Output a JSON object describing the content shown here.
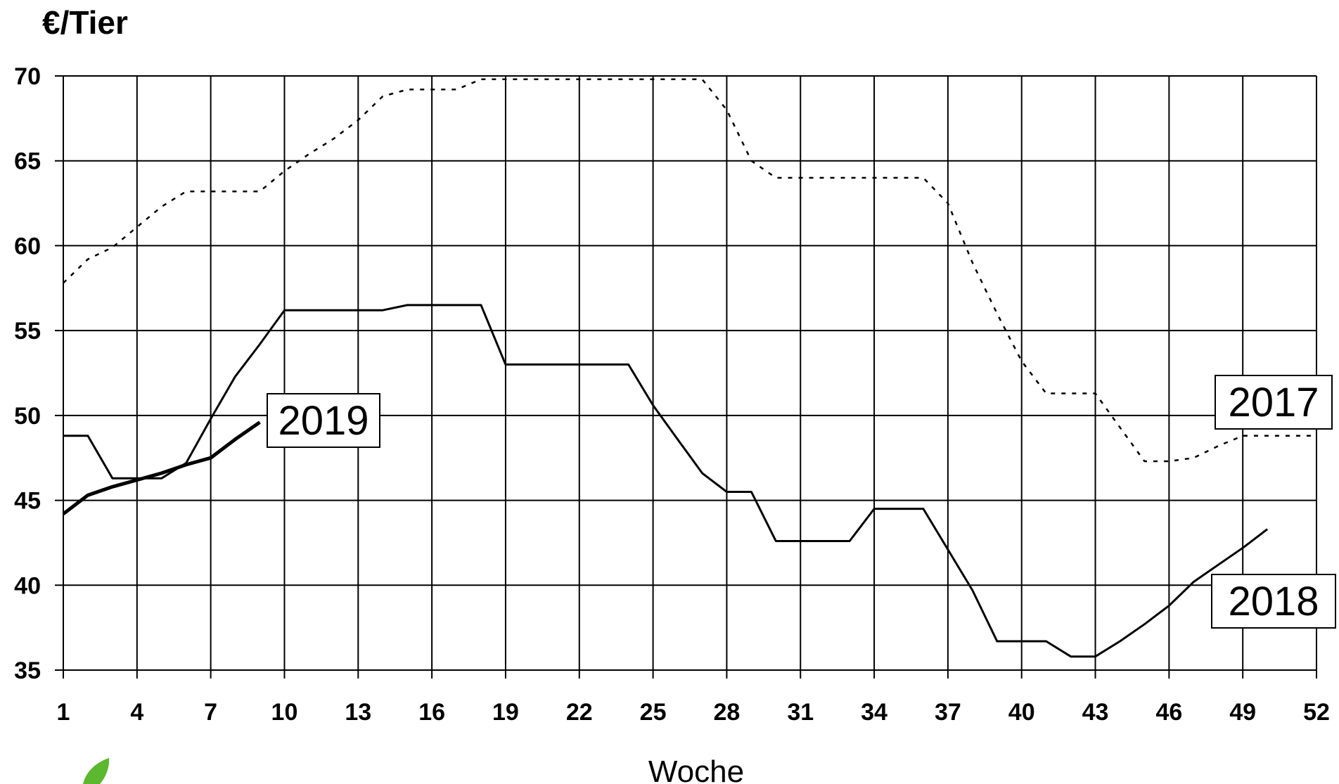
{
  "chart_data": {
    "type": "line",
    "ylabel": "€/Tier",
    "xlabel": "Woche",
    "ylim": [
      35,
      70
    ],
    "xlim": [
      1,
      52
    ],
    "xticks": [
      "1",
      "4",
      "7",
      "10",
      "13",
      "16",
      "19",
      "22",
      "25",
      "28",
      "31",
      "34",
      "37",
      "40",
      "43",
      "46",
      "49",
      "52"
    ],
    "yticks": [
      "35",
      "40",
      "45",
      "50",
      "55",
      "60",
      "65",
      "70"
    ],
    "grid": true,
    "series": [
      {
        "name": "2017",
        "style": "dotted",
        "color": "#000000",
        "x": [
          1,
          2,
          3,
          4,
          5,
          6,
          7,
          8,
          9,
          10,
          11,
          12,
          13,
          14,
          15,
          16,
          17,
          18,
          19,
          20,
          21,
          22,
          23,
          24,
          25,
          26,
          27,
          28,
          29,
          30,
          31,
          32,
          33,
          34,
          35,
          36,
          37,
          38,
          39,
          40,
          41,
          42,
          43,
          44,
          45,
          46,
          47,
          48,
          49,
          50,
          51,
          52
        ],
        "values": [
          57.8,
          59.2,
          59.9,
          61.1,
          62.3,
          63.2,
          63.2,
          63.2,
          63.2,
          64.4,
          65.4,
          66.3,
          67.4,
          68.8,
          69.2,
          69.2,
          69.2,
          69.8,
          69.8,
          69.8,
          69.8,
          69.8,
          69.8,
          69.8,
          69.8,
          69.8,
          69.8,
          68.0,
          65.0,
          64.0,
          64.0,
          64.0,
          64.0,
          64.0,
          64.0,
          64.0,
          62.5,
          59.0,
          56.0,
          53.2,
          51.3,
          51.3,
          51.3,
          49.3,
          47.3,
          47.3,
          47.5,
          48.2,
          48.8,
          48.8,
          48.8,
          48.8
        ]
      },
      {
        "name": "2018",
        "style": "solid",
        "color": "#000000",
        "x": [
          1,
          2,
          3,
          4,
          5,
          6,
          7,
          8,
          9,
          10,
          11,
          12,
          13,
          14,
          15,
          16,
          17,
          18,
          19,
          20,
          21,
          22,
          23,
          24,
          25,
          26,
          27,
          28,
          29,
          30,
          31,
          32,
          33,
          34,
          35,
          36,
          37,
          38,
          39,
          40,
          41,
          42,
          43,
          44,
          45,
          46,
          47,
          48,
          49,
          50
        ],
        "values": [
          48.8,
          48.8,
          46.3,
          46.3,
          46.3,
          47.2,
          49.8,
          52.3,
          54.2,
          56.2,
          56.2,
          56.2,
          56.2,
          56.2,
          56.5,
          56.5,
          56.5,
          56.5,
          53.0,
          53.0,
          53.0,
          53.0,
          53.0,
          53.0,
          50.6,
          48.6,
          46.6,
          45.5,
          45.5,
          42.6,
          42.6,
          42.6,
          42.6,
          44.5,
          44.5,
          44.5,
          42.1,
          39.7,
          36.7,
          36.7,
          36.7,
          35.8,
          35.8,
          36.7,
          37.7,
          38.8,
          40.2,
          41.2,
          42.2,
          43.3
        ]
      },
      {
        "name": "2019",
        "style": "solid-bold",
        "color": "#000000",
        "x": [
          1,
          2,
          3,
          4,
          5,
          6,
          7,
          8,
          9
        ],
        "values": [
          44.2,
          45.3,
          45.8,
          46.2,
          46.6,
          47.1,
          47.5,
          48.6,
          49.6
        ]
      }
    ],
    "series_labels": [
      {
        "text": "2019"
      },
      {
        "text": "2017"
      },
      {
        "text": "2018"
      }
    ]
  }
}
